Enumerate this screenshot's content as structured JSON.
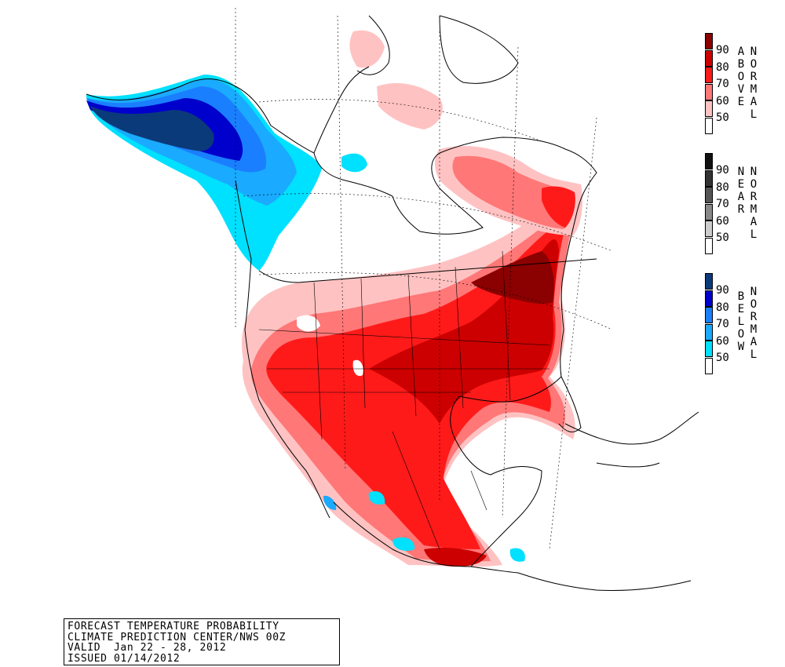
{
  "caption": {
    "line1": "FORECAST TEMPERATURE PROBABILITY",
    "line2": "CLIMATE PREDICTION CENTER/NWS 00Z",
    "line3": "VALID  Jan 22 - 28, 2012",
    "line4": "ISSUED 01/14/2012"
  },
  "legends": [
    {
      "id": "above",
      "word1": "ABOVE",
      "word2": "NORMAL",
      "labels": [
        "90",
        "80",
        "70",
        "60",
        "50"
      ],
      "colors": [
        "#8b0000",
        "#cc0000",
        "#ff1a1a",
        "#ff7777",
        "#ffc2c2",
        "#ffffff"
      ]
    },
    {
      "id": "near",
      "word1": "NEAR",
      "word2": "NORMAL",
      "labels": [
        "90",
        "80",
        "70",
        "60",
        "50"
      ],
      "colors": [
        "#111111",
        "#333333",
        "#555555",
        "#888888",
        "#cccccc",
        "#ffffff"
      ]
    },
    {
      "id": "below",
      "word1": "BELOW",
      "word2": "NORMAL",
      "labels": [
        "90",
        "80",
        "70",
        "60",
        "50"
      ],
      "colors": [
        "#0b3a7a",
        "#0000cc",
        "#1a7fff",
        "#1aaaff",
        "#00e0ff",
        "#ffffff"
      ]
    }
  ]
}
